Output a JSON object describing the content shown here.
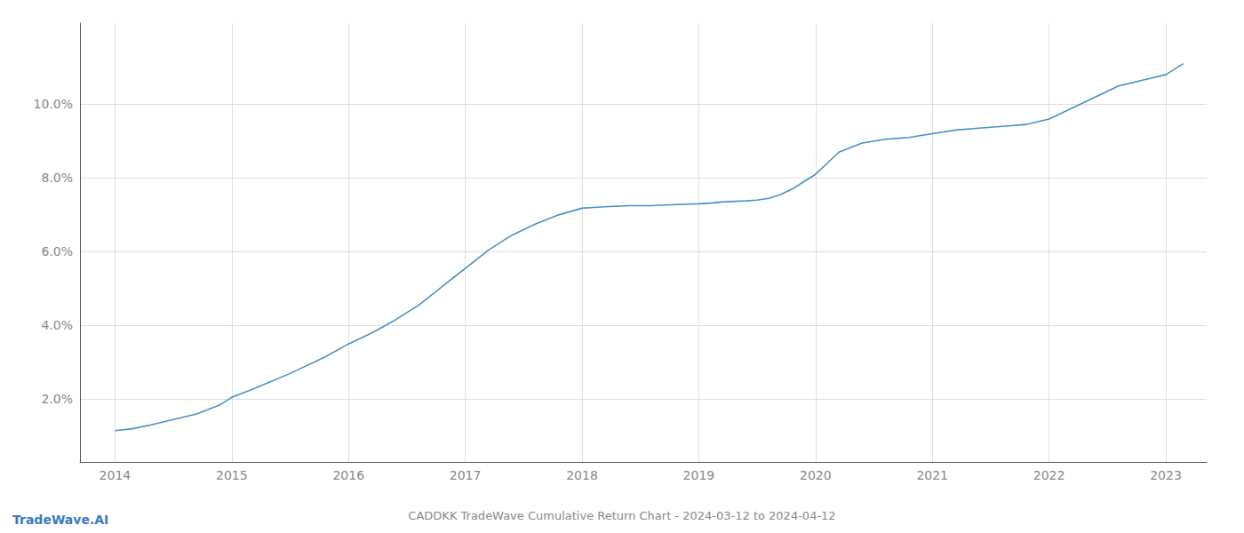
{
  "chart_data": {
    "type": "line",
    "title": "CADDKK TradeWave Cumulative Return Chart - 2024-03-12 to 2024-04-12",
    "annotations": [
      "TradeWave.AI"
    ],
    "color": "#4a90c4",
    "x": [
      2014.0,
      2014.15,
      2014.3,
      2014.5,
      2014.7,
      2014.9,
      2015.0,
      2015.2,
      2015.5,
      2015.8,
      2016.0,
      2016.2,
      2016.4,
      2016.6,
      2016.8,
      2017.0,
      2017.2,
      2017.4,
      2017.6,
      2017.8,
      2018.0,
      2018.1,
      2018.2,
      2018.4,
      2018.6,
      2018.8,
      2019.0,
      2019.1,
      2019.2,
      2019.4,
      2019.5,
      2019.6,
      2019.7,
      2019.8,
      2019.9,
      2020.0,
      2020.1,
      2020.2,
      2020.4,
      2020.6,
      2020.8,
      2021.0,
      2021.2,
      2021.4,
      2021.6,
      2021.8,
      2022.0,
      2022.2,
      2022.4,
      2022.6,
      2022.8,
      2023.0,
      2023.15
    ],
    "values": [
      1.15,
      1.2,
      1.3,
      1.45,
      1.6,
      1.85,
      2.05,
      2.3,
      2.7,
      3.15,
      3.5,
      3.8,
      4.15,
      4.55,
      5.05,
      5.55,
      6.05,
      6.45,
      6.75,
      7.0,
      7.18,
      7.2,
      7.22,
      7.25,
      7.25,
      7.28,
      7.3,
      7.32,
      7.35,
      7.38,
      7.4,
      7.45,
      7.55,
      7.7,
      7.9,
      8.1,
      8.4,
      8.7,
      8.95,
      9.05,
      9.1,
      9.2,
      9.3,
      9.35,
      9.4,
      9.45,
      9.6,
      9.9,
      10.2,
      10.5,
      10.65,
      10.8,
      11.1
    ],
    "xlim": [
      2013.7,
      2023.35
    ],
    "xticks": [
      2014,
      2015,
      2016,
      2017,
      2018,
      2019,
      2020,
      2021,
      2022,
      2023
    ],
    "ylim": [
      0.3,
      12.2
    ],
    "yticks": [
      {
        "value": 2.0,
        "label": "2.0%"
      },
      {
        "value": 4.0,
        "label": "4.0%"
      },
      {
        "value": 6.0,
        "label": "6.0%"
      },
      {
        "value": 8.0,
        "label": "8.0%"
      },
      {
        "value": 10.0,
        "label": "10.0%"
      }
    ],
    "grid": true
  }
}
